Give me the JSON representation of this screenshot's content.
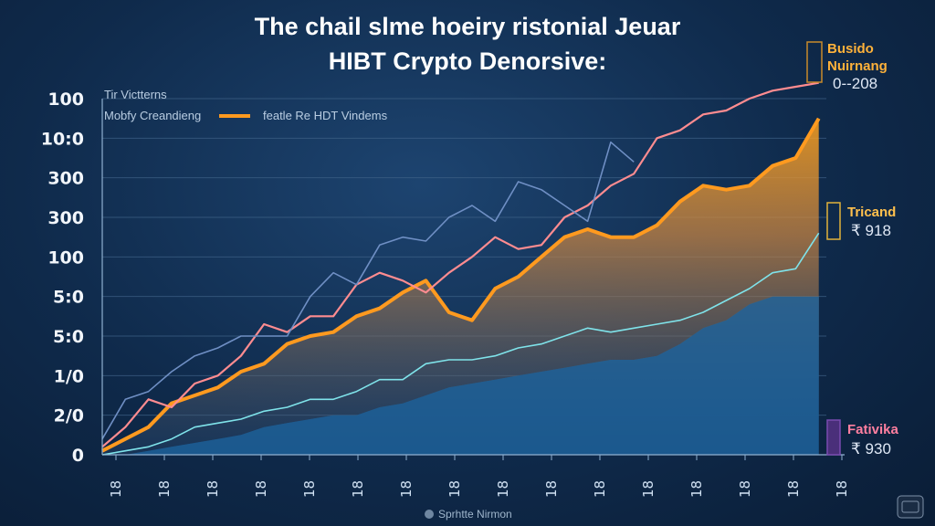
{
  "chart_data": {
    "type": "area",
    "title": [
      "The chail slme hoeiry ristonial Jeuar",
      "HIBT Crypto Denorsive:"
    ],
    "legend_heading": "Tir Victterns",
    "legend": [
      {
        "label": "Mobfy Creandieng",
        "color": "#6fd3e8"
      },
      {
        "label": "featle Re HDT Vindems",
        "color": "#ff9a1f"
      }
    ],
    "y_tick_labels": [
      "100",
      "10:0",
      "300",
      "300",
      "100",
      "5:0",
      "5:0",
      "1/0",
      "2/0",
      "0"
    ],
    "x_tick_labels": [
      "18",
      "18",
      "18",
      "18",
      "18",
      "18",
      "18",
      "18",
      "18",
      "18",
      "18",
      "18",
      "18",
      "18",
      "18",
      "18"
    ],
    "x": [
      0,
      0.5,
      1,
      1.5,
      2,
      2.5,
      3,
      3.5,
      4,
      4.5,
      5,
      5.5,
      6,
      6.5,
      7,
      7.5,
      8,
      8.5,
      9,
      9.5,
      10,
      10.5,
      11,
      11.5,
      12,
      12.5,
      13,
      13.5,
      14,
      14.5,
      15,
      15.5
    ],
    "ylim": [
      0,
      9
    ],
    "xlim": [
      0,
      16
    ],
    "series": [
      {
        "kind": "line",
        "color": "#ff8c90",
        "values": [
          0.2,
          0.7,
          1.4,
          1.2,
          1.8,
          2.0,
          2.5,
          3.3,
          3.1,
          3.5,
          3.5,
          4.3,
          4.6,
          4.4,
          4.1,
          4.6,
          5.0,
          5.5,
          5.2,
          5.3,
          6.0,
          6.3,
          6.8,
          7.1,
          8.0,
          8.2,
          8.6,
          8.7,
          9.0,
          9.2,
          9.3,
          9.4
        ]
      },
      {
        "kind": "line",
        "color": "#6f8fc4",
        "values": [
          0.4,
          1.4,
          1.6,
          2.1,
          2.5,
          2.7,
          3.0,
          3.0,
          3.0,
          4.0,
          4.6,
          4.3,
          5.3,
          5.5,
          5.4,
          6.0,
          6.3,
          5.9,
          6.9,
          6.7,
          6.3,
          5.9,
          7.9,
          7.4,
          null,
          null,
          null,
          null,
          null,
          null,
          null,
          null
        ]
      },
      {
        "kind": "band",
        "name": "",
        "color_top": "#ff9a1f",
        "color_bottom": "#3d5f8a",
        "values": [
          0.1,
          0.4,
          0.7,
          1.3,
          1.5,
          1.7,
          2.1,
          2.3,
          2.8,
          3.0,
          3.1,
          3.5,
          3.7,
          4.1,
          4.4,
          3.6,
          3.4,
          4.2,
          4.5,
          5.0,
          5.5,
          5.7,
          5.5,
          5.5,
          5.8,
          6.4,
          6.8,
          6.7,
          6.8,
          7.3,
          7.5,
          8.5
        ]
      },
      {
        "kind": "line",
        "color": "#7fe3ea",
        "values": [
          0.0,
          0.1,
          0.2,
          0.4,
          0.7,
          0.8,
          0.9,
          1.1,
          1.2,
          1.4,
          1.4,
          1.6,
          1.9,
          1.9,
          2.3,
          2.4,
          2.4,
          2.5,
          2.7,
          2.8,
          3.0,
          3.2,
          3.1,
          3.2,
          3.3,
          3.4,
          3.6,
          3.9,
          4.2,
          4.6,
          4.7,
          5.6
        ]
      },
      {
        "kind": "area",
        "color": "#1b5c94",
        "values": [
          0.0,
          0.0,
          0.1,
          0.2,
          0.3,
          0.4,
          0.5,
          0.7,
          0.8,
          0.9,
          1.0,
          1.0,
          1.2,
          1.3,
          1.5,
          1.7,
          1.8,
          1.9,
          2.0,
          2.1,
          2.2,
          2.3,
          2.4,
          2.4,
          2.5,
          2.8,
          3.2,
          3.4,
          3.8,
          4.0,
          4.0,
          4.0
        ]
      }
    ],
    "annotations": [
      {
        "label_lines": [
          "Busido",
          "Nuirnang"
        ],
        "value": "0--208",
        "label_color": "#ffb23a",
        "marker_color": "#c98a2a"
      },
      {
        "label_lines": [
          "Tricand"
        ],
        "value": "₹ 918",
        "label_color": "#ffc04d",
        "marker_color": "#e2b23b"
      },
      {
        "label_lines": [
          "Fativika"
        ],
        "value": "₹ 930",
        "label_color": "#ff7fa0",
        "marker_color": "#7a4bb0"
      }
    ],
    "footer": "Sprhtte Nirmon"
  }
}
